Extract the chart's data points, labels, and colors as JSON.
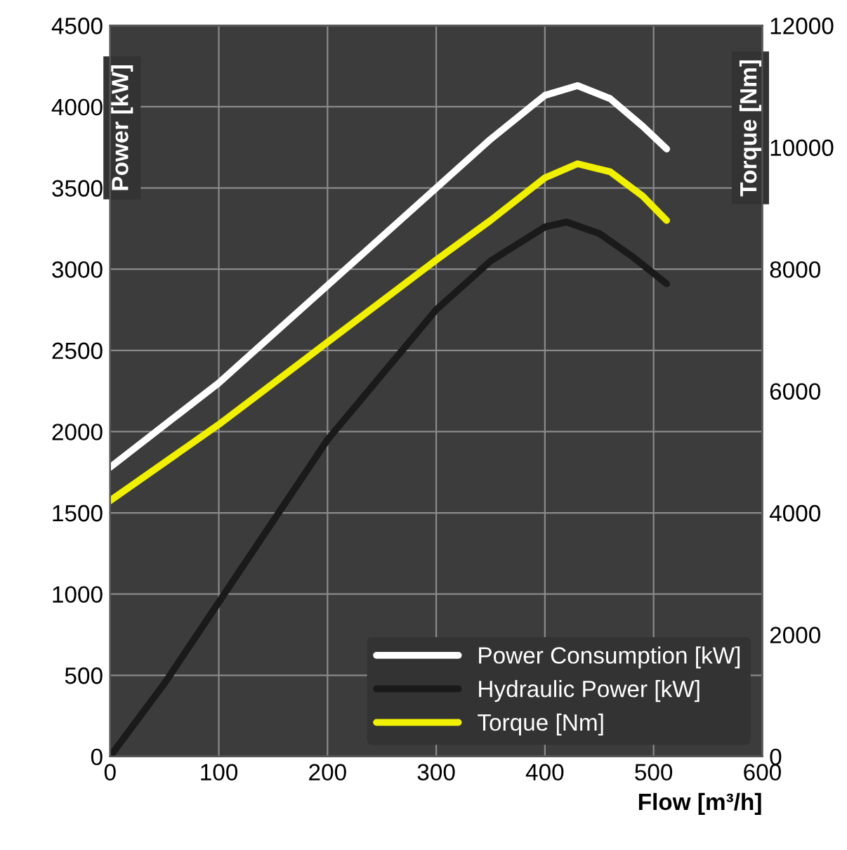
{
  "chart_data": {
    "type": "line",
    "xlabel": "Flow [m³/h]",
    "ylabel": "Power [kW]",
    "y2label": "Torque [Nm]",
    "xlim": [
      0,
      600
    ],
    "xticks": [
      0,
      100,
      200,
      300,
      400,
      500,
      600
    ],
    "ylim": [
      0,
      4500
    ],
    "yticks": [
      0,
      500,
      1000,
      1500,
      2000,
      2500,
      3000,
      3500,
      4000,
      4500
    ],
    "y2lim": [
      0,
      12000
    ],
    "y2ticks": [
      0,
      2000,
      4000,
      6000,
      8000,
      10000,
      12000
    ],
    "grid": true,
    "legend": "bottom right",
    "line_style": "solid",
    "marker": "none",
    "series": [
      {
        "name": "Power Consumption [kW]",
        "color": "#ffffff",
        "x": [
          0,
          100,
          200,
          300,
          350,
          400,
          430,
          460,
          490,
          512
        ],
        "values": [
          1780,
          2300,
          2900,
          3500,
          3800,
          4070,
          4130,
          4050,
          3880,
          3740
        ]
      },
      {
        "name": "Hydraulic Power [kW]",
        "color": "#1a1a1a",
        "x": [
          0,
          50,
          100,
          150,
          200,
          250,
          300,
          350,
          400,
          420,
          450,
          480,
          512
        ],
        "values": [
          0,
          450,
          950,
          1450,
          1950,
          2350,
          2750,
          3050,
          3260,
          3290,
          3220,
          3080,
          2910
        ]
      },
      {
        "name": "Torque [Nm]",
        "color": "#f0f000",
        "axis": "y2",
        "x": [
          0,
          100,
          200,
          300,
          350,
          400,
          430,
          460,
          490,
          512
        ],
        "values": [
          4200,
          5450,
          6800,
          8150,
          8800,
          9500,
          9730,
          9600,
          9200,
          8800
        ]
      }
    ]
  }
}
